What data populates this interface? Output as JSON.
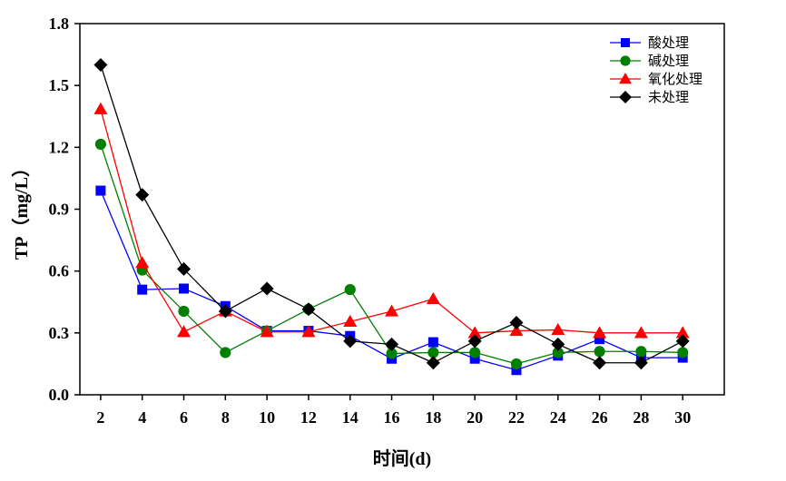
{
  "chart_data": {
    "type": "line",
    "x": [
      2,
      4,
      6,
      8,
      10,
      12,
      14,
      16,
      18,
      20,
      22,
      24,
      26,
      28,
      30
    ],
    "xlabel": "时间(d)",
    "ylabel": "TP（mg/L）",
    "xlim": [
      1,
      32
    ],
    "ylim": [
      0,
      1.8
    ],
    "xticks": [
      2,
      4,
      6,
      8,
      10,
      12,
      14,
      16,
      18,
      20,
      22,
      24,
      26,
      28,
      30
    ],
    "yticks": [
      "0.0",
      "0.3",
      "0.6",
      "0.9",
      "1.2",
      "1.5",
      "1.8"
    ],
    "grid": false,
    "legend_position": "top-right",
    "series": [
      {
        "name": "酸处理",
        "color": "#0000ff",
        "marker": "square",
        "values": [
          0.99,
          0.51,
          0.515,
          0.43,
          0.31,
          0.31,
          0.285,
          0.175,
          0.255,
          0.175,
          0.12,
          0.19,
          0.27,
          0.18,
          0.18
        ]
      },
      {
        "name": "碱处理",
        "color": "#008000",
        "marker": "circle",
        "values": [
          1.215,
          0.605,
          0.405,
          0.205,
          0.31,
          0.415,
          0.51,
          0.2,
          0.205,
          0.205,
          0.15,
          0.205,
          0.21,
          0.21,
          0.205
        ]
      },
      {
        "name": "氧化处理",
        "color": "#ff0000",
        "marker": "triangle",
        "values": [
          1.385,
          0.64,
          0.305,
          0.405,
          0.305,
          0.305,
          0.355,
          0.405,
          0.465,
          0.3,
          0.31,
          0.315,
          0.3,
          0.3,
          0.3
        ]
      },
      {
        "name": "未处理",
        "color": "#000000",
        "marker": "diamond",
        "values": [
          1.6,
          0.97,
          0.61,
          0.405,
          0.515,
          0.415,
          0.26,
          0.245,
          0.155,
          0.26,
          0.35,
          0.245,
          0.155,
          0.155,
          0.26
        ]
      }
    ]
  }
}
